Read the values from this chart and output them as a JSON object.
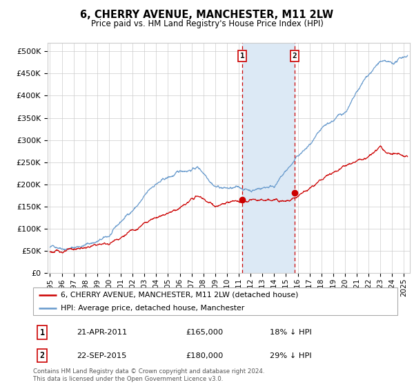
{
  "title": "6, CHERRY AVENUE, MANCHESTER, M11 2LW",
  "subtitle": "Price paid vs. HM Land Registry's House Price Index (HPI)",
  "ylabel_ticks": [
    "£0",
    "£50K",
    "£100K",
    "£150K",
    "£200K",
    "£250K",
    "£300K",
    "£350K",
    "£400K",
    "£450K",
    "£500K"
  ],
  "ytick_values": [
    0,
    50000,
    100000,
    150000,
    200000,
    250000,
    300000,
    350000,
    400000,
    450000,
    500000
  ],
  "ylim": [
    0,
    520000
  ],
  "xlim_start": 1994.8,
  "xlim_end": 2025.5,
  "marker1_x": 2011.3,
  "marker1_y": 165000,
  "marker1_label": "1",
  "marker2_x": 2015.73,
  "marker2_y": 180000,
  "marker2_label": "2",
  "shade_color": "#dce9f5",
  "dashed_color": "#cc0000",
  "legend_entry1": "6, CHERRY AVENUE, MANCHESTER, M11 2LW (detached house)",
  "legend_entry2": "HPI: Average price, detached house, Manchester",
  "table_row1_num": "1",
  "table_row1_date": "21-APR-2011",
  "table_row1_price": "£165,000",
  "table_row1_hpi": "18% ↓ HPI",
  "table_row2_num": "2",
  "table_row2_date": "22-SEP-2015",
  "table_row2_price": "£180,000",
  "table_row2_hpi": "29% ↓ HPI",
  "footer": "Contains HM Land Registry data © Crown copyright and database right 2024.\nThis data is licensed under the Open Government Licence v3.0.",
  "line_red_color": "#cc0000",
  "line_blue_color": "#6699cc",
  "background_color": "#ffffff",
  "grid_color": "#cccccc"
}
